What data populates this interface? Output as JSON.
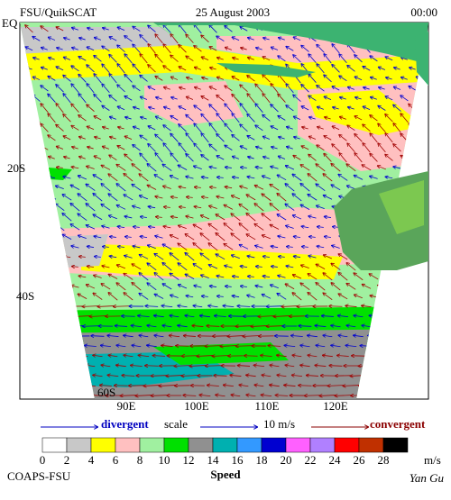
{
  "header": {
    "title": "FSU/QuikSCAT",
    "date": "25 August 2003",
    "time": "00:00"
  },
  "map": {
    "lat_labels": [
      "EQ",
      "20S",
      "40S",
      "60S"
    ],
    "lon_labels": [
      "90E",
      "100E",
      "110E",
      "120E"
    ]
  },
  "scale": {
    "divergent": "divergent",
    "scale": "scale",
    "magnitude": "10 m/s",
    "convergent": "convergent"
  },
  "colorbar": {
    "colors": [
      "#ffffff",
      "#c8c8c8",
      "#ffff00",
      "#ffc0c0",
      "#a0f0a0",
      "#00e000",
      "#909090",
      "#00b0b0",
      "#3399ff",
      "#0000d0",
      "#ff60ff",
      "#b080ff",
      "#ff0000",
      "#c03000",
      "#000000"
    ],
    "ticks": [
      0,
      2,
      4,
      6,
      8,
      10,
      12,
      14,
      16,
      18,
      20,
      22,
      24,
      26,
      28
    ],
    "unit": "m/s",
    "title": "Speed"
  },
  "footer": {
    "source": "COAPS-FSU",
    "author": "Yan Gu"
  }
}
